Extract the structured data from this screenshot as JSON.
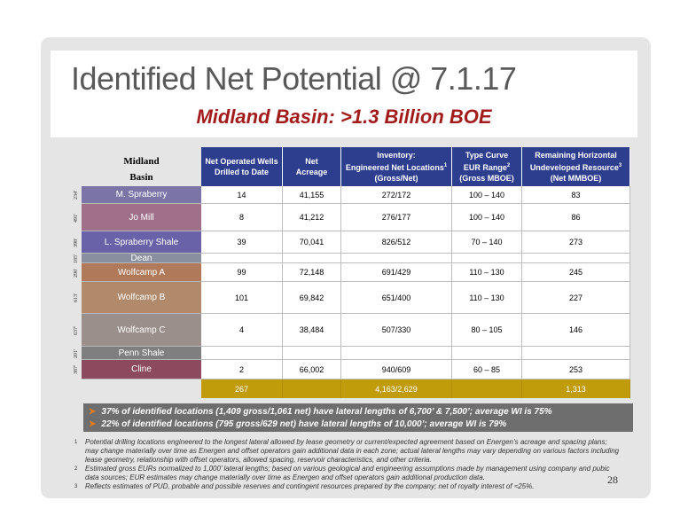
{
  "title": "Identified Net Potential @ 7.1.17",
  "subtitle": "Midland Basin: >1.3 Billion BOE",
  "basin_header": [
    "Midland",
    "Basin"
  ],
  "columns": [
    {
      "lines": [
        "Net Operated Wells",
        "Drilled to Date"
      ],
      "sup": ""
    },
    {
      "lines": [
        "Net",
        "Acreage"
      ],
      "sup": ""
    },
    {
      "lines": [
        "Inventory:",
        "Engineered Net Locations",
        "(Gross/Net)"
      ],
      "sup": "1"
    },
    {
      "lines": [
        "Type Curve",
        "EUR Range",
        "(Gross MBOE)"
      ],
      "sup": "2"
    },
    {
      "lines": [
        "Remaining Horizontal",
        "Undeveloped Resource",
        "(Net MMBOE)"
      ],
      "sup": "3"
    }
  ],
  "rows": [
    {
      "zone": "M. Spraberry",
      "thickness": "234'",
      "color": "#7b74a6",
      "wells": "14",
      "acreage": "41,155",
      "inventory": "272/172",
      "eur": "100 – 140",
      "resource": "83"
    },
    {
      "zone": "Jo Mill",
      "thickness": "491'",
      "color": "#a0708a",
      "wells": "8",
      "acreage": "41,212",
      "inventory": "276/177",
      "eur": "100 – 140",
      "resource": "86"
    },
    {
      "zone": "L. Spraberry Shale",
      "thickness": "398'",
      "color": "#6a62a8",
      "wells": "39",
      "acreage": "70,041",
      "inventory": "826/512",
      "eur": "70 – 140",
      "resource": "273"
    },
    {
      "zone": "Dean",
      "thickness": "185'",
      "color": "#8a8fa0",
      "wells": "",
      "acreage": "",
      "inventory": "",
      "eur": "",
      "resource": ""
    },
    {
      "zone": "Wolfcamp A",
      "thickness": "296'",
      "color": "#b07a5a",
      "wells": "99",
      "acreage": "72,148",
      "inventory": "691/429",
      "eur": "110 – 130",
      "resource": "245"
    },
    {
      "zone": "Wolfcamp B",
      "thickness": "613'",
      "color": "#b18a6c",
      "wells": "101",
      "acreage": "69,842",
      "inventory": "651/400",
      "eur": "110 – 130",
      "resource": "227"
    },
    {
      "zone": "Wolfcamp C",
      "thickness": "637'",
      "color": "#9a8f8a",
      "wells": "4",
      "acreage": "38,484",
      "inventory": "507/330",
      "eur": "80 – 105",
      "resource": "146"
    },
    {
      "zone": "Penn Shale",
      "thickness": "201'",
      "color": "#7f7f7f",
      "wells": "",
      "acreage": "",
      "inventory": "",
      "eur": "",
      "resource": ""
    },
    {
      "zone": "Cline",
      "thickness": "387'",
      "color": "#8b4a5e",
      "wells": "2",
      "acreage": "66,002",
      "inventory": "940/609",
      "eur": "60 – 85",
      "resource": "253"
    }
  ],
  "totals": {
    "wells": "267",
    "inventory": "4,163/2,629",
    "resource": "1,313"
  },
  "bullets": [
    "37% of identified locations (1,409 gross/1,061 net) have lateral lengths of 6,700’ & 7,500’; average WI is 75%",
    "22% of identified locations (795 gross/629 net) have lateral lengths of 10,000’; average WI is 79%"
  ],
  "footnotes": [
    {
      "n": "1",
      "text": "Potential drilling locations engineered to the longest lateral allowed by lease geometry or current/expected agreement based on Energen’s acreage and spacing plans; may change materially over time as Energen and offset operators gain additional data in each zone; actual lateral lengths may vary depending on various factors including lease geometry, relationship with offset operators, allowed spacing, reservoir characteristics, and other criteria."
    },
    {
      "n": "2",
      "text": "Estimated gross EURs normalized to 1,000’ lateral lengths; based on various geological and engineering assumptions made by management using company and pubic data sources; EUR estimates may change materially over time as Energen and offset operators gain additional production data."
    },
    {
      "n": "3",
      "text": "Reflects estimates of PUD, probable and possible reserves and contingent resources prepared by the company; net of royalty interest of ≈25%."
    }
  ],
  "page_number": "28"
}
